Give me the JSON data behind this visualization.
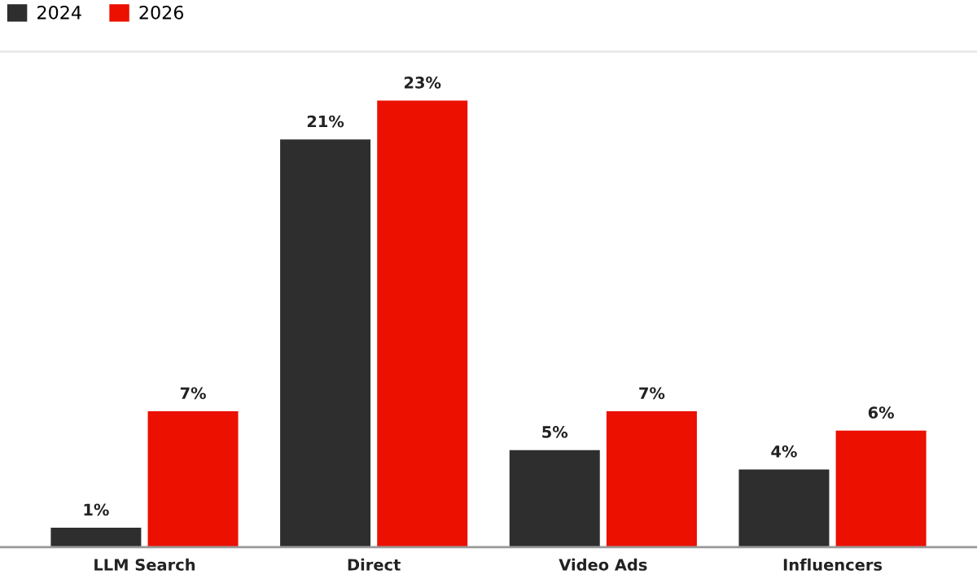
{
  "chart_data": {
    "type": "bar",
    "categories": [
      "LLM Search",
      "Direct",
      "Video Ads",
      "Influencers"
    ],
    "series": [
      {
        "name": "2024",
        "color": "#2d2e2d",
        "values": [
          1,
          21,
          5,
          4
        ],
        "value_labels": [
          "1%",
          "21%",
          "5%",
          "4%"
        ]
      },
      {
        "name": "2026",
        "color": "#eb1000",
        "values": [
          7,
          23,
          7,
          6
        ],
        "value_labels": [
          "7%",
          "23%",
          "7%",
          "6%"
        ]
      }
    ],
    "legend": "top left",
    "grid": false
  }
}
